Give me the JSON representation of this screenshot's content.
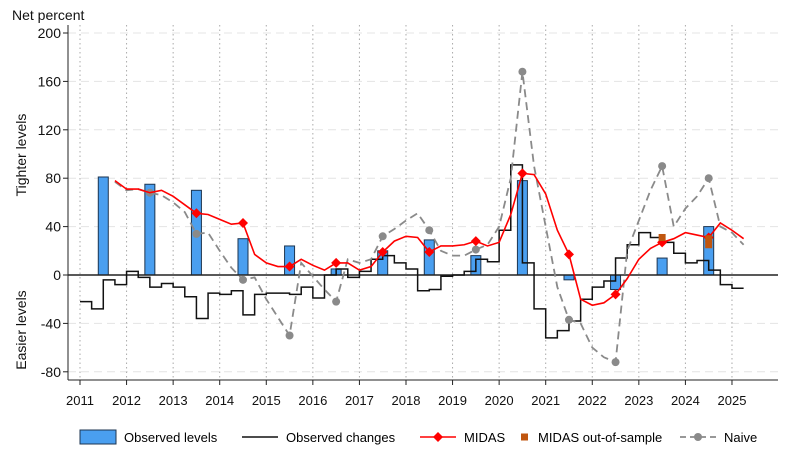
{
  "chart_data": {
    "type": "bar+line",
    "ylabel_top": "Net percent",
    "ylabel_upper": "Tighter levels",
    "ylabel_lower": "Easier levels",
    "ylim": [
      -80,
      200
    ],
    "yticks": [
      -80,
      -40,
      0,
      40,
      80,
      120,
      160,
      200
    ],
    "xlim": [
      2010.75,
      2026
    ],
    "xticks": [
      2011,
      2012,
      2013,
      2014,
      2015,
      2016,
      2017,
      2018,
      2019,
      2020,
      2021,
      2022,
      2023,
      2024,
      2025
    ],
    "grid": true,
    "legend_placement": "bottom",
    "colors": {
      "bars": "#4a9ff0",
      "changes": "#111111",
      "midas": "#ff0000",
      "oos": "#c0560f",
      "naive": "#8a8a8a"
    },
    "series": [
      {
        "name": "Observed levels",
        "type": "bar",
        "x": [
          2011.5,
          2012.5,
          2013.5,
          2014.5,
          2015.5,
          2016.5,
          2017.5,
          2018.5,
          2019.5,
          2020.5,
          2021.5,
          2022.5,
          2023.5,
          2024.5
        ],
        "values": [
          81,
          75,
          70,
          30,
          24,
          5,
          20,
          29,
          16,
          78,
          -4,
          -12,
          14,
          40
        ]
      },
      {
        "name": "Observed changes",
        "type": "step",
        "x_start": 2011,
        "step": 0.25,
        "values": [
          -22,
          -28,
          -4,
          -8,
          3,
          -2,
          -10,
          -7,
          -10,
          -18,
          -36,
          -15,
          -16,
          -13,
          -33,
          -16,
          -15,
          -15,
          -16,
          -10,
          -19,
          0,
          5,
          -2,
          3,
          13,
          16,
          10,
          5,
          -13,
          -12,
          -1,
          0,
          3,
          13,
          11,
          37,
          91,
          10,
          -28,
          -52,
          -46,
          -38,
          -20,
          -10,
          -5,
          14,
          25,
          35,
          31,
          27,
          18,
          10,
          12,
          4,
          -8,
          -11
        ]
      },
      {
        "name": "MIDAS",
        "type": "line",
        "x_start": 2011.75,
        "step": 0.25,
        "values": [
          78,
          71,
          71,
          68,
          70,
          65,
          58,
          51,
          50,
          46,
          42,
          43,
          17,
          10,
          7,
          7,
          13,
          8,
          4,
          10,
          10,
          4,
          7,
          19,
          28,
          32,
          31,
          19,
          24,
          24,
          25,
          28,
          24,
          27,
          50,
          84,
          83,
          67,
          37,
          17,
          -20,
          -25,
          -23,
          -16,
          -3,
          13,
          22,
          27,
          30,
          35,
          33,
          31,
          43,
          37,
          30
        ],
        "markers_x": [
          2013.5,
          2014.5,
          2015.5,
          2016.5,
          2017.5,
          2018.5,
          2019.5,
          2020.5,
          2021.5,
          2022.5,
          2023.5,
          2024.5
        ]
      },
      {
        "name": "MIDAS out-of-sample",
        "type": "scatter",
        "x": [
          2023.5,
          2024.5,
          2024.5
        ],
        "values": [
          31,
          30,
          25
        ]
      },
      {
        "name": "Naive",
        "type": "line",
        "x_start": 2011.75,
        "step": 0.25,
        "values": [
          77,
          70,
          71,
          68,
          66,
          60,
          52,
          34,
          35,
          20,
          6,
          -4,
          -2,
          -20,
          -35,
          -50,
          10,
          -1,
          -12,
          -22,
          13,
          10,
          13,
          32,
          38,
          45,
          51,
          37,
          20,
          16,
          16,
          21,
          25,
          40,
          80,
          168,
          90,
          40,
          -10,
          -37,
          -40,
          -60,
          -68,
          -72,
          20,
          45,
          70,
          90,
          40,
          55,
          65,
          80,
          40,
          35,
          25
        ],
        "markers_x": [
          2012.5,
          2013.5,
          2014.5,
          2015.5,
          2016.5,
          2017.5,
          2018.5,
          2019.5,
          2020.5,
          2021.5,
          2022.5,
          2023.5,
          2024.5
        ]
      }
    ],
    "legend": [
      "Observed levels",
      "Observed changes",
      "MIDAS",
      "MIDAS out-of-sample",
      "Naive"
    ]
  }
}
